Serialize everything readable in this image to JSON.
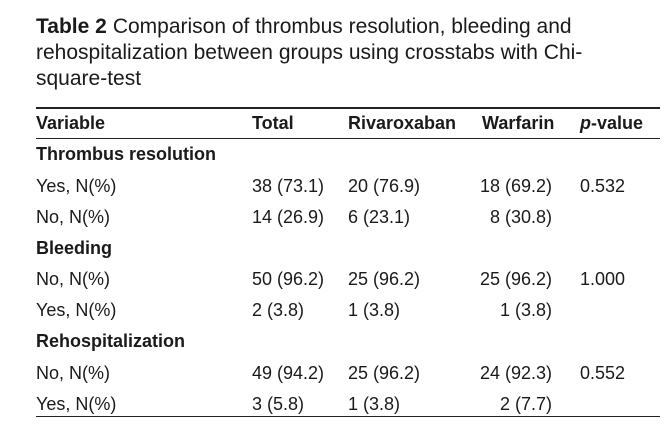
{
  "caption": {
    "label": "Table 2",
    "text": "Comparison of thrombus resolution, bleeding and rehospitalization between groups using crosstabs with Chi-square-test"
  },
  "table": {
    "headers": {
      "variable": "Variable",
      "total": "Total",
      "rivaroxaban": "Rivaroxaban",
      "warfarin": "Warfarin",
      "pvalue_italic": "p",
      "pvalue_rest": "-value"
    },
    "groups": [
      {
        "title": "Thrombus resolution",
        "rows": [
          {
            "variable": "Yes, N(%)",
            "total": "38 (73.1)",
            "rivaroxaban": "20 (76.9)",
            "warfarin": "18 (69.2)",
            "pvalue": "0.532"
          },
          {
            "variable": "No, N(%)",
            "total": "14 (26.9)",
            "rivaroxaban": "6 (23.1)",
            "warfarin": "8 (30.8)",
            "pvalue": ""
          }
        ]
      },
      {
        "title": "Bleeding",
        "rows": [
          {
            "variable": "No, N(%)",
            "total": "50 (96.2)",
            "rivaroxaban": "25 (96.2)",
            "warfarin": "25 (96.2)",
            "pvalue": "1.000"
          },
          {
            "variable": "Yes, N(%)",
            "total": "2 (3.8)",
            "rivaroxaban": "1 (3.8)",
            "warfarin": "1 (3.8)",
            "pvalue": ""
          }
        ]
      },
      {
        "title": "Rehospitalization",
        "rows": [
          {
            "variable": "No, N(%)",
            "total": "49 (94.2)",
            "rivaroxaban": "25 (96.2)",
            "warfarin": "24 (92.3)",
            "pvalue": "0.552"
          },
          {
            "variable": "Yes, N(%)",
            "total": "3 (5.8)",
            "rivaroxaban": "1 (3.8)",
            "warfarin": "2 (7.7)",
            "pvalue": ""
          }
        ]
      }
    ]
  }
}
